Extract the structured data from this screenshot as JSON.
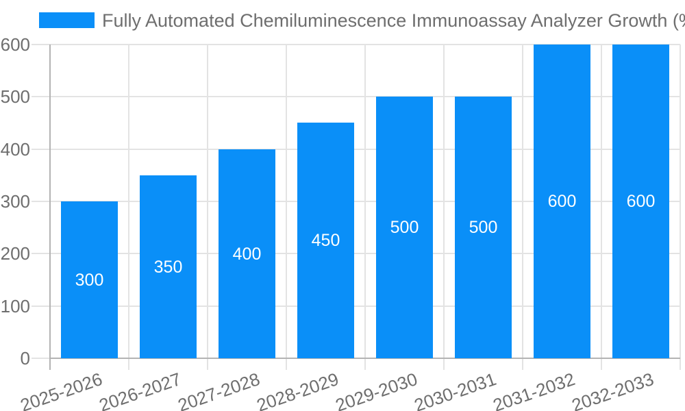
{
  "legend": {
    "label": "Fully Automated Chemiluminescence Immunoassay Analyzer Growth (%)"
  },
  "chart_data": {
    "type": "bar",
    "title": "Fully Automated Chemiluminescence Immunoassay Analyzer Growth (%)",
    "series_name": "Fully Automated Chemiluminescence Immunoassay Analyzer Growth (%)",
    "categories": [
      "2025-2026",
      "2026-2027",
      "2027-2028",
      "2028-2029",
      "2029-2030",
      "2030-2031",
      "2031-2032",
      "2032-2033"
    ],
    "values": [
      300,
      350,
      400,
      450,
      500,
      500,
      600,
      600
    ],
    "data_labels": [
      "300",
      "350",
      "400",
      "450",
      "500",
      "500",
      "600",
      "600"
    ],
    "xlabel": "",
    "ylabel": "",
    "ylim": [
      0,
      600
    ],
    "ytick_step": 100,
    "yticks": [
      "0",
      "100",
      "200",
      "300",
      "400",
      "500",
      "600"
    ],
    "grid": true,
    "legend_position": "top-left",
    "colors": {
      "bar": "#0a8ff8",
      "grid": "#e3e3e3",
      "axis": "#b3b3b3",
      "text": "#6e6e6e",
      "data_label": "#ffffff",
      "background": "#ffffff"
    }
  }
}
